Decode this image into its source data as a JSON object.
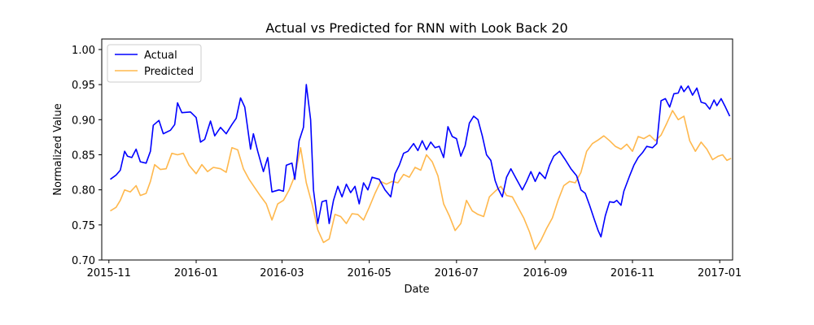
{
  "chart_data": {
    "type": "line",
    "title": "Actual vs Predicted for RNN with Look Back 20",
    "xlabel": "Date",
    "ylabel": "Normalized Value",
    "xlim": [
      "2015-10-27",
      "2017-01-10"
    ],
    "ylim": [
      0.7,
      1.015
    ],
    "x_ticks": [
      "2015-11",
      "2016-01",
      "2016-03",
      "2016-05",
      "2016-07",
      "2016-09",
      "2016-11",
      "2017-01"
    ],
    "y_ticks": [
      "0.70",
      "0.75",
      "0.80",
      "0.85",
      "0.90",
      "0.95",
      "1.00"
    ],
    "grid": false,
    "legend_position": "top-left",
    "series": [
      {
        "name": "Actual",
        "color": "#0000ff",
        "points": [
          [
            "2015-11-02",
            0.815
          ],
          [
            "2015-11-06",
            0.821
          ],
          [
            "2015-11-09",
            0.828
          ],
          [
            "2015-11-12",
            0.855
          ],
          [
            "2015-11-14",
            0.848
          ],
          [
            "2015-11-17",
            0.846
          ],
          [
            "2015-11-20",
            0.858
          ],
          [
            "2015-11-23",
            0.84
          ],
          [
            "2015-11-27",
            0.838
          ],
          [
            "2015-11-30",
            0.855
          ],
          [
            "2015-12-02",
            0.892
          ],
          [
            "2015-12-06",
            0.899
          ],
          [
            "2015-12-09",
            0.88
          ],
          [
            "2015-12-14",
            0.885
          ],
          [
            "2015-12-17",
            0.893
          ],
          [
            "2015-12-19",
            0.924
          ],
          [
            "2015-12-22",
            0.91
          ],
          [
            "2015-12-28",
            0.911
          ],
          [
            "2016-01-01",
            0.903
          ],
          [
            "2016-01-04",
            0.868
          ],
          [
            "2016-01-07",
            0.872
          ],
          [
            "2016-01-11",
            0.898
          ],
          [
            "2016-01-14",
            0.877
          ],
          [
            "2016-01-18",
            0.889
          ],
          [
            "2016-01-22",
            0.88
          ],
          [
            "2016-01-26",
            0.893
          ],
          [
            "2016-01-29",
            0.902
          ],
          [
            "2016-02-01",
            0.931
          ],
          [
            "2016-02-04",
            0.918
          ],
          [
            "2016-02-08",
            0.858
          ],
          [
            "2016-02-10",
            0.88
          ],
          [
            "2016-02-13",
            0.855
          ],
          [
            "2016-02-17",
            0.826
          ],
          [
            "2016-02-20",
            0.846
          ],
          [
            "2016-02-23",
            0.797
          ],
          [
            "2016-02-28",
            0.8
          ],
          [
            "2016-03-02",
            0.798
          ],
          [
            "2016-03-04",
            0.835
          ],
          [
            "2016-03-08",
            0.838
          ],
          [
            "2016-03-10",
            0.815
          ],
          [
            "2016-03-13",
            0.87
          ],
          [
            "2016-03-16",
            0.889
          ],
          [
            "2016-03-18",
            0.95
          ],
          [
            "2016-03-21",
            0.9
          ],
          [
            "2016-03-23",
            0.8
          ],
          [
            "2016-03-26",
            0.752
          ],
          [
            "2016-03-29",
            0.783
          ],
          [
            "2016-04-01",
            0.785
          ],
          [
            "2016-04-03",
            0.752
          ],
          [
            "2016-04-06",
            0.785
          ],
          [
            "2016-04-09",
            0.805
          ],
          [
            "2016-04-12",
            0.79
          ],
          [
            "2016-04-15",
            0.808
          ],
          [
            "2016-04-18",
            0.796
          ],
          [
            "2016-04-21",
            0.805
          ],
          [
            "2016-04-24",
            0.78
          ],
          [
            "2016-04-27",
            0.81
          ],
          [
            "2016-04-30",
            0.8
          ],
          [
            "2016-05-03",
            0.818
          ],
          [
            "2016-05-08",
            0.815
          ],
          [
            "2016-05-12",
            0.8
          ],
          [
            "2016-05-16",
            0.79
          ],
          [
            "2016-05-19",
            0.823
          ],
          [
            "2016-05-22",
            0.835
          ],
          [
            "2016-05-25",
            0.852
          ],
          [
            "2016-05-28",
            0.855
          ],
          [
            "2016-06-01",
            0.866
          ],
          [
            "2016-06-04",
            0.856
          ],
          [
            "2016-06-07",
            0.87
          ],
          [
            "2016-06-10",
            0.857
          ],
          [
            "2016-06-13",
            0.868
          ],
          [
            "2016-06-16",
            0.86
          ],
          [
            "2016-06-19",
            0.862
          ],
          [
            "2016-06-22",
            0.846
          ],
          [
            "2016-06-25",
            0.89
          ],
          [
            "2016-06-28",
            0.876
          ],
          [
            "2016-07-01",
            0.873
          ],
          [
            "2016-07-04",
            0.848
          ],
          [
            "2016-07-07",
            0.863
          ],
          [
            "2016-07-10",
            0.895
          ],
          [
            "2016-07-13",
            0.905
          ],
          [
            "2016-07-16",
            0.9
          ],
          [
            "2016-07-19",
            0.877
          ],
          [
            "2016-07-22",
            0.85
          ],
          [
            "2016-07-25",
            0.842
          ],
          [
            "2016-07-28",
            0.813
          ],
          [
            "2016-07-30",
            0.802
          ],
          [
            "2016-08-02",
            0.79
          ],
          [
            "2016-08-05",
            0.818
          ],
          [
            "2016-08-08",
            0.83
          ],
          [
            "2016-08-12",
            0.815
          ],
          [
            "2016-08-16",
            0.8
          ],
          [
            "2016-08-19",
            0.812
          ],
          [
            "2016-08-22",
            0.826
          ],
          [
            "2016-08-25",
            0.812
          ],
          [
            "2016-08-28",
            0.825
          ],
          [
            "2016-09-01",
            0.816
          ],
          [
            "2016-09-04",
            0.835
          ],
          [
            "2016-09-07",
            0.848
          ],
          [
            "2016-09-11",
            0.855
          ],
          [
            "2016-09-15",
            0.843
          ],
          [
            "2016-09-19",
            0.83
          ],
          [
            "2016-09-23",
            0.82
          ],
          [
            "2016-09-26",
            0.8
          ],
          [
            "2016-09-29",
            0.795
          ],
          [
            "2016-10-02",
            0.778
          ],
          [
            "2016-10-05",
            0.76
          ],
          [
            "2016-10-08",
            0.742
          ],
          [
            "2016-10-10",
            0.733
          ],
          [
            "2016-10-13",
            0.763
          ],
          [
            "2016-10-16",
            0.783
          ],
          [
            "2016-10-19",
            0.782
          ],
          [
            "2016-10-21",
            0.785
          ],
          [
            "2016-10-24",
            0.778
          ],
          [
            "2016-10-26",
            0.798
          ],
          [
            "2016-10-30",
            0.82
          ],
          [
            "2016-11-02",
            0.835
          ],
          [
            "2016-11-05",
            0.846
          ],
          [
            "2016-11-08",
            0.853
          ],
          [
            "2016-11-11",
            0.862
          ],
          [
            "2016-11-15",
            0.86
          ],
          [
            "2016-11-18",
            0.866
          ],
          [
            "2016-11-21",
            0.927
          ],
          [
            "2016-11-24",
            0.93
          ],
          [
            "2016-11-27",
            0.918
          ],
          [
            "2016-11-30",
            0.937
          ],
          [
            "2016-12-03",
            0.938
          ],
          [
            "2016-12-05",
            0.948
          ],
          [
            "2016-12-07",
            0.94
          ],
          [
            "2016-12-10",
            0.948
          ],
          [
            "2016-12-13",
            0.935
          ],
          [
            "2016-12-16",
            0.945
          ],
          [
            "2016-12-19",
            0.925
          ],
          [
            "2016-12-22",
            0.923
          ],
          [
            "2016-12-25",
            0.915
          ],
          [
            "2016-12-28",
            0.928
          ],
          [
            "2016-12-30",
            0.92
          ],
          [
            "2017-01-02",
            0.93
          ],
          [
            "2017-01-05",
            0.918
          ],
          [
            "2017-01-08",
            0.905
          ]
        ]
      },
      {
        "name": "Predicted",
        "color": "#ffb84d",
        "points": [
          [
            "2015-11-02",
            0.77
          ],
          [
            "2015-11-06",
            0.775
          ],
          [
            "2015-11-09",
            0.785
          ],
          [
            "2015-11-12",
            0.8
          ],
          [
            "2015-11-16",
            0.797
          ],
          [
            "2015-11-20",
            0.806
          ],
          [
            "2015-11-23",
            0.792
          ],
          [
            "2015-11-27",
            0.795
          ],
          [
            "2015-11-30",
            0.812
          ],
          [
            "2015-12-03",
            0.836
          ],
          [
            "2015-12-07",
            0.829
          ],
          [
            "2015-12-11",
            0.83
          ],
          [
            "2015-12-15",
            0.852
          ],
          [
            "2015-12-19",
            0.85
          ],
          [
            "2015-12-23",
            0.852
          ],
          [
            "2015-12-27",
            0.835
          ],
          [
            "2016-01-01",
            0.823
          ],
          [
            "2016-01-05",
            0.836
          ],
          [
            "2016-01-09",
            0.826
          ],
          [
            "2016-01-13",
            0.832
          ],
          [
            "2016-01-18",
            0.83
          ],
          [
            "2016-01-22",
            0.825
          ],
          [
            "2016-01-26",
            0.86
          ],
          [
            "2016-01-30",
            0.857
          ],
          [
            "2016-02-03",
            0.83
          ],
          [
            "2016-02-07",
            0.815
          ],
          [
            "2016-02-11",
            0.803
          ],
          [
            "2016-02-15",
            0.791
          ],
          [
            "2016-02-19",
            0.78
          ],
          [
            "2016-02-23",
            0.757
          ],
          [
            "2016-02-27",
            0.78
          ],
          [
            "2016-03-02",
            0.785
          ],
          [
            "2016-03-06",
            0.8
          ],
          [
            "2016-03-10",
            0.82
          ],
          [
            "2016-03-14",
            0.86
          ],
          [
            "2016-03-18",
            0.81
          ],
          [
            "2016-03-22",
            0.78
          ],
          [
            "2016-03-26",
            0.743
          ],
          [
            "2016-03-30",
            0.725
          ],
          [
            "2016-04-03",
            0.73
          ],
          [
            "2016-04-07",
            0.765
          ],
          [
            "2016-04-11",
            0.762
          ],
          [
            "2016-04-15",
            0.752
          ],
          [
            "2016-04-19",
            0.766
          ],
          [
            "2016-04-23",
            0.765
          ],
          [
            "2016-04-27",
            0.757
          ],
          [
            "2016-05-01",
            0.775
          ],
          [
            "2016-05-05",
            0.795
          ],
          [
            "2016-05-09",
            0.812
          ],
          [
            "2016-05-13",
            0.808
          ],
          [
            "2016-05-17",
            0.812
          ],
          [
            "2016-05-21",
            0.81
          ],
          [
            "2016-05-25",
            0.822
          ],
          [
            "2016-05-29",
            0.818
          ],
          [
            "2016-06-02",
            0.832
          ],
          [
            "2016-06-06",
            0.828
          ],
          [
            "2016-06-10",
            0.85
          ],
          [
            "2016-06-14",
            0.84
          ],
          [
            "2016-06-18",
            0.82
          ],
          [
            "2016-06-22",
            0.78
          ],
          [
            "2016-06-26",
            0.763
          ],
          [
            "2016-06-30",
            0.742
          ],
          [
            "2016-07-04",
            0.752
          ],
          [
            "2016-07-08",
            0.785
          ],
          [
            "2016-07-12",
            0.77
          ],
          [
            "2016-07-16",
            0.765
          ],
          [
            "2016-07-20",
            0.762
          ],
          [
            "2016-07-24",
            0.79
          ],
          [
            "2016-07-28",
            0.798
          ],
          [
            "2016-08-01",
            0.805
          ],
          [
            "2016-08-05",
            0.792
          ],
          [
            "2016-08-09",
            0.79
          ],
          [
            "2016-08-13",
            0.775
          ],
          [
            "2016-08-17",
            0.76
          ],
          [
            "2016-08-21",
            0.74
          ],
          [
            "2016-08-25",
            0.715
          ],
          [
            "2016-08-29",
            0.728
          ],
          [
            "2016-09-02",
            0.745
          ],
          [
            "2016-09-06",
            0.76
          ],
          [
            "2016-09-10",
            0.785
          ],
          [
            "2016-09-14",
            0.806
          ],
          [
            "2016-09-18",
            0.812
          ],
          [
            "2016-09-22",
            0.81
          ],
          [
            "2016-09-26",
            0.825
          ],
          [
            "2016-09-30",
            0.855
          ],
          [
            "2016-10-04",
            0.866
          ],
          [
            "2016-10-08",
            0.871
          ],
          [
            "2016-10-12",
            0.877
          ],
          [
            "2016-10-16",
            0.87
          ],
          [
            "2016-10-20",
            0.862
          ],
          [
            "2016-10-24",
            0.858
          ],
          [
            "2016-10-28",
            0.865
          ],
          [
            "2016-11-01",
            0.855
          ],
          [
            "2016-11-05",
            0.876
          ],
          [
            "2016-11-09",
            0.873
          ],
          [
            "2016-11-13",
            0.878
          ],
          [
            "2016-11-17",
            0.87
          ],
          [
            "2016-11-21",
            0.878
          ],
          [
            "2016-11-25",
            0.895
          ],
          [
            "2016-11-29",
            0.913
          ],
          [
            "2016-12-03",
            0.9
          ],
          [
            "2016-12-07",
            0.905
          ],
          [
            "2016-12-11",
            0.87
          ],
          [
            "2016-12-15",
            0.855
          ],
          [
            "2016-12-19",
            0.868
          ],
          [
            "2016-12-23",
            0.858
          ],
          [
            "2016-12-27",
            0.843
          ],
          [
            "2016-12-31",
            0.848
          ],
          [
            "2017-01-03",
            0.85
          ],
          [
            "2017-01-06",
            0.842
          ],
          [
            "2017-01-09",
            0.845
          ]
        ]
      }
    ]
  }
}
